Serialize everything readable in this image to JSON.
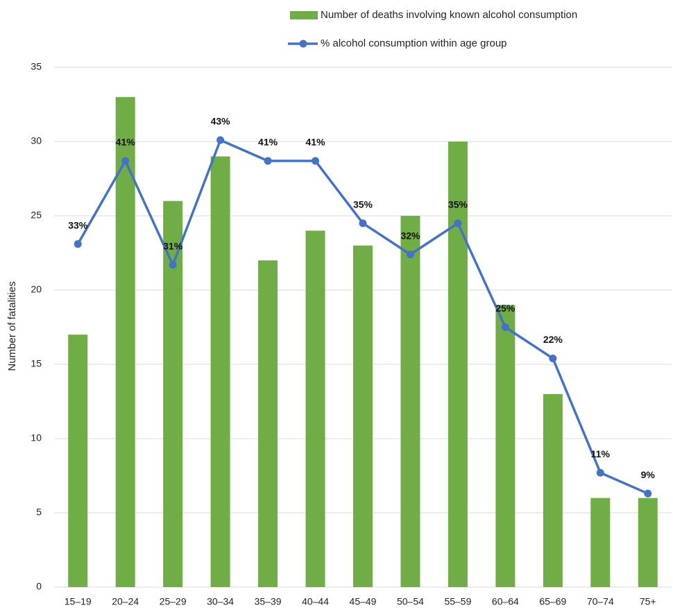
{
  "chart_data": {
    "type": "bar",
    "y_label": "Number of fatalities",
    "categories": [
      "15–19",
      "20–24",
      "25–29",
      "30–34",
      "35–39",
      "40–44",
      "45–49",
      "50–54",
      "55–59",
      "60–64",
      "65–69",
      "70–74",
      "75+"
    ],
    "series": [
      {
        "name": "Number of deaths involving known alcohol consumption",
        "type": "bar",
        "color": "#70ad47",
        "values": [
          17,
          33,
          26,
          29,
          22,
          24,
          23,
          25,
          30,
          19,
          13,
          6,
          6
        ]
      },
      {
        "name": "% alcohol consumption within age group",
        "type": "line",
        "axis": "y2",
        "color": "#4472c4",
        "values": [
          33,
          41,
          31,
          43,
          41,
          41,
          35,
          32,
          35,
          25,
          22,
          11,
          9
        ],
        "value_labels": [
          "33%",
          "41%",
          "31%",
          "43%",
          "41%",
          "41%",
          "35%",
          "32%",
          "35%",
          "25%",
          "22%",
          "11%",
          "9%"
        ]
      }
    ],
    "ylim": [
      0,
      35
    ],
    "yticks": [
      0,
      5,
      10,
      15,
      20,
      25,
      30,
      35
    ],
    "y2lim": [
      0,
      50
    ],
    "grid": true
  }
}
